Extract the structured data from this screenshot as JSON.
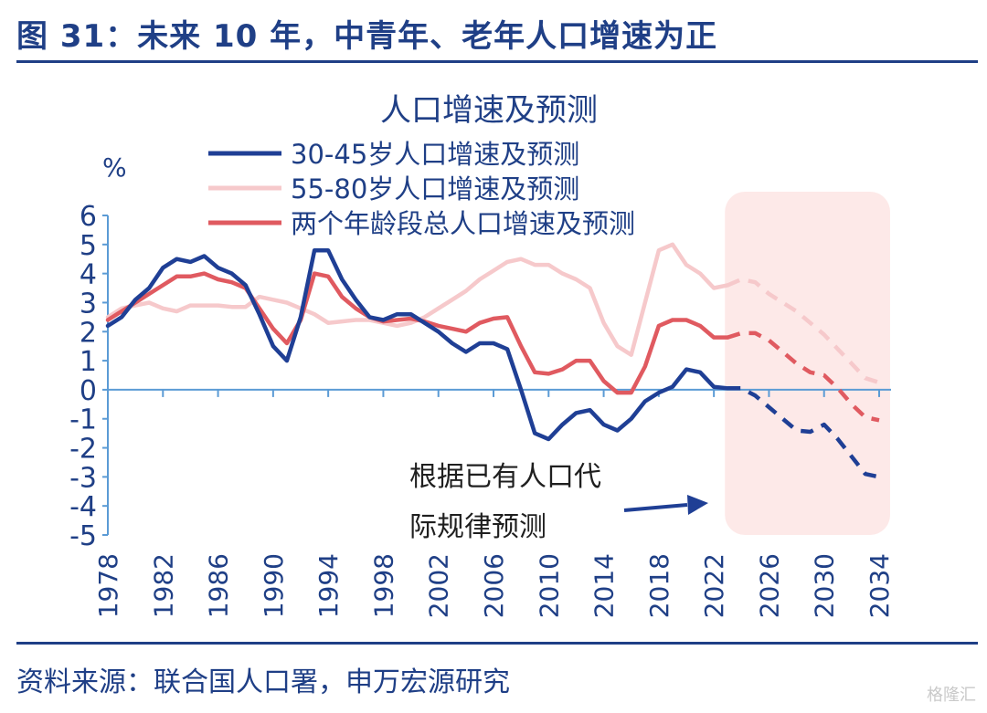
{
  "figure_title": "图 31：未来 10 年，中青年、老年人口增速为正",
  "source": "资料来源：联合国人口署，申万宏源研究",
  "watermark": "格隆汇",
  "chart_data": {
    "type": "line",
    "title": "人口增速及预测",
    "ylabel": "%",
    "ylim": [
      -5,
      6
    ],
    "yticks": [
      6,
      5,
      4,
      3,
      2,
      1,
      0,
      -1,
      -2,
      -3,
      -4,
      -5
    ],
    "xlim": [
      1978,
      2034
    ],
    "xticks": [
      1978,
      1982,
      1986,
      1990,
      1994,
      1998,
      2002,
      2006,
      2010,
      2014,
      2018,
      2022,
      2026,
      2030,
      2034
    ],
    "forecast_start": 2023,
    "forecast_region": [
      2023,
      2034
    ],
    "annotation": [
      "根据已有人口代",
      "际规律预测"
    ],
    "colors": {
      "series_30_45": "#1f3f95",
      "series_55_80": "#f6c9cb",
      "series_total": "#e05a60",
      "forecast_region": "#fde9e8",
      "axis": "#5b9bd5"
    },
    "x": [
      1978,
      1979,
      1980,
      1981,
      1982,
      1983,
      1984,
      1985,
      1986,
      1987,
      1988,
      1989,
      1990,
      1991,
      1992,
      1993,
      1994,
      1995,
      1996,
      1997,
      1998,
      1999,
      2000,
      2001,
      2002,
      2003,
      2004,
      2005,
      2006,
      2007,
      2008,
      2009,
      2010,
      2011,
      2012,
      2013,
      2014,
      2015,
      2016,
      2017,
      2018,
      2019,
      2020,
      2021,
      2022,
      2023,
      2024,
      2025,
      2026,
      2027,
      2028,
      2029,
      2030,
      2031,
      2032,
      2033,
      2034
    ],
    "series": [
      {
        "name": "30-45岁人口增速及预测",
        "values": [
          2.2,
          2.5,
          3.1,
          3.5,
          4.2,
          4.5,
          4.4,
          4.6,
          4.2,
          4.0,
          3.6,
          2.6,
          1.5,
          1.0,
          2.5,
          4.8,
          4.8,
          3.8,
          3.1,
          2.5,
          2.4,
          2.6,
          2.6,
          2.3,
          2.0,
          1.6,
          1.3,
          1.6,
          1.6,
          1.4,
          0.0,
          -1.5,
          -1.7,
          -1.2,
          -0.8,
          -0.7,
          -1.2,
          -1.4,
          -1.0,
          -0.4,
          -0.1,
          0.1,
          0.7,
          0.6,
          0.1,
          0.05,
          0.05,
          -0.2,
          -0.6,
          -1.0,
          -1.4,
          -1.45,
          -1.2,
          -1.7,
          -2.3,
          -2.9,
          -3.0
        ]
      },
      {
        "name": "55-80岁人口增速及预测",
        "values": [
          2.5,
          2.8,
          2.9,
          3.0,
          2.8,
          2.7,
          2.9,
          2.9,
          2.9,
          2.85,
          2.85,
          3.2,
          3.1,
          3.0,
          2.8,
          2.6,
          2.3,
          2.35,
          2.4,
          2.4,
          2.3,
          2.2,
          2.3,
          2.5,
          2.8,
          3.1,
          3.4,
          3.8,
          4.1,
          4.4,
          4.5,
          4.3,
          4.3,
          4.0,
          3.8,
          3.5,
          2.3,
          1.5,
          1.2,
          3.0,
          4.8,
          5.0,
          4.3,
          4.0,
          3.5,
          3.6,
          3.8,
          3.7,
          3.3,
          3.0,
          2.7,
          2.3,
          1.9,
          1.4,
          0.9,
          0.4,
          0.25
        ]
      },
      {
        "name": "两个年龄段总人口增速及预测",
        "values": [
          2.4,
          2.7,
          3.0,
          3.3,
          3.6,
          3.9,
          3.9,
          4.0,
          3.8,
          3.7,
          3.5,
          2.8,
          2.1,
          1.6,
          2.4,
          4.0,
          3.9,
          3.2,
          2.8,
          2.5,
          2.35,
          2.4,
          2.45,
          2.35,
          2.2,
          2.1,
          2.0,
          2.3,
          2.45,
          2.5,
          1.5,
          0.6,
          0.55,
          0.7,
          1.0,
          1.0,
          0.3,
          -0.1,
          -0.1,
          0.8,
          2.2,
          2.4,
          2.4,
          2.2,
          1.8,
          1.8,
          1.95,
          1.95,
          1.7,
          1.3,
          0.9,
          0.6,
          0.5,
          0.05,
          -0.5,
          -0.95,
          -1.05
        ]
      }
    ]
  }
}
